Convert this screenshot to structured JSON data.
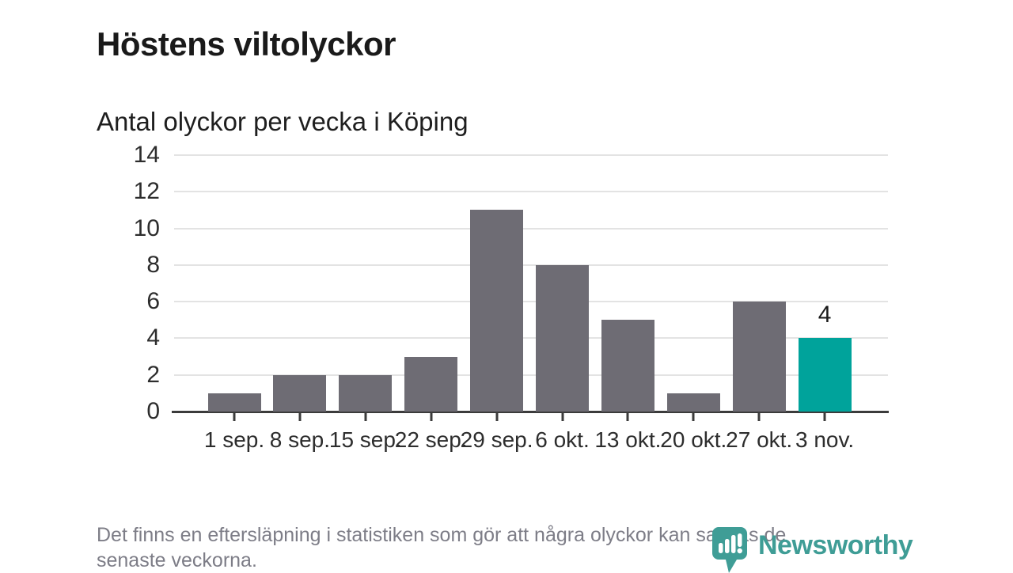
{
  "header": {
    "title": "Höstens viltolyckor",
    "subtitle": "Antal olyckor per vecka i Köping"
  },
  "chart_data": {
    "type": "bar",
    "title": "Höstens viltolyckor",
    "subtitle": "Antal olyckor per vecka i Köping",
    "categories": [
      "1 sep.",
      "8 sep.",
      "15 sep.",
      "22 sep.",
      "29 sep.",
      "6 okt.",
      "13 okt.",
      "20 okt.",
      "27 okt.",
      "3 nov."
    ],
    "values": [
      1,
      2,
      2,
      3,
      11,
      8,
      5,
      1,
      6,
      4
    ],
    "highlight_index": 9,
    "highlight_label": "4",
    "bar_color": "#6e6c74",
    "highlight_color": "#00a39b",
    "xlabel": "",
    "ylabel": "",
    "ylim": [
      0,
      14
    ],
    "yticks": [
      0,
      2,
      4,
      6,
      8,
      10,
      12,
      14
    ],
    "grid": true,
    "legend": false
  },
  "footer": {
    "note_lines": [
      "Det finns en eftersläpning i statistiken som gör att några olyckor kan saknas de",
      "senaste veckorna."
    ],
    "brand": {
      "name": "Newsworthy",
      "color": "#3f9d96"
    }
  }
}
